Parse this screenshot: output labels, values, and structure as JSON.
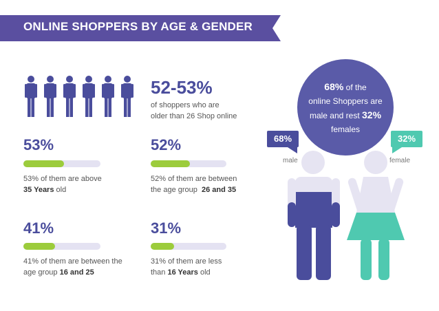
{
  "header": {
    "title": "ONLINE SHOPPERS BY AGE & GENDER"
  },
  "headline_stat": {
    "value": "52-53%",
    "description_line1": "of shoppers who are",
    "description_line2": "older than 26 Shop online"
  },
  "stats": [
    {
      "value": "53%",
      "fill": 0.53,
      "text_pre": "53% of them are above",
      "text_bold": "35 Years",
      "text_post": " old"
    },
    {
      "value": "52%",
      "fill": 0.52,
      "text_pre": "52% of them are between",
      "text_mid": "the age group ",
      "text_bold": "26 and 35"
    },
    {
      "value": "41%",
      "fill": 0.41,
      "text_pre": "41% of them are between the",
      "text_mid": "age group ",
      "text_bold": "16 and 25"
    },
    {
      "value": "31%",
      "fill": 0.31,
      "text_pre": "31% of them are less",
      "text_mid": "than ",
      "text_bold": "16 Years",
      "text_post": " old"
    }
  ],
  "gender": {
    "circle_pct_male": "68%",
    "circle_line1_rest": " of the",
    "circle_line2": "online Shoppers are",
    "circle_line3_pre": "male and rest ",
    "circle_pct_female": "32%",
    "circle_line4": "females",
    "male_tag": "68%",
    "male_label": "male",
    "female_tag": "32%",
    "female_label": "female"
  },
  "colors": {
    "purple": "#5a5ba8",
    "banner": "#5a4fa0",
    "green_bar": "#9ccc3c",
    "teal": "#4fc9b0",
    "figure_light": "#e6e4f2"
  }
}
